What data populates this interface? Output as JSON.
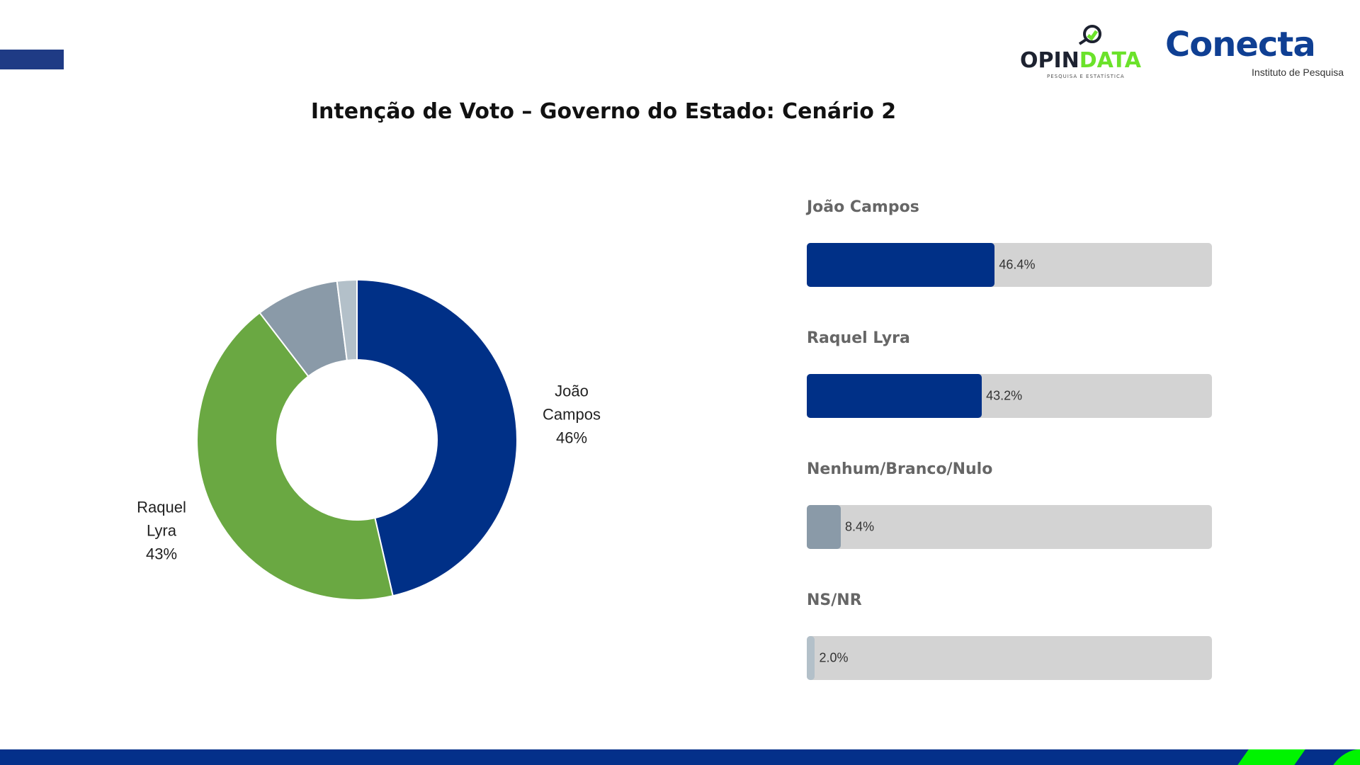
{
  "title": "Intenção de Voto – Governo do Estado: Cenário 2",
  "logos": {
    "opindata_a": "OPIN",
    "opindata_b": "DATA",
    "opindata_sub": "PESQUISA E ESTATÍSTICA",
    "conecta": "Conecta",
    "conecta_sub": "Instituto de Pesquisa"
  },
  "colors": {
    "navy": "#003087",
    "green": "#6aa842",
    "gray": "#8a9aa8",
    "light_gray": "#b3c0c9",
    "track": "#d3d3d3",
    "accent_green": "#00f400"
  },
  "chart_data": [
    {
      "type": "pie",
      "donut": true,
      "slices": [
        {
          "name": "João Campos",
          "value": 46.4,
          "label_lines": [
            "João",
            "Campos",
            "46%"
          ],
          "color": "#003087"
        },
        {
          "name": "Raquel Lyra",
          "value": 43.2,
          "label_lines": [
            "Raquel",
            "Lyra",
            "43%"
          ],
          "color": "#6aa842"
        },
        {
          "name": "Nenhum/Branco/Nulo",
          "value": 8.4,
          "color": "#8a9aa8"
        },
        {
          "name": "NS/NR",
          "value": 2.0,
          "color": "#b3c0c9"
        }
      ]
    },
    {
      "type": "bar",
      "orientation": "horizontal",
      "xlim": [
        0,
        100
      ],
      "bars": [
        {
          "category": "João Campos",
          "value": 46.4,
          "label": "46.4%",
          "color": "#003087"
        },
        {
          "category": "Raquel Lyra",
          "value": 43.2,
          "label": "43.2%",
          "color": "#003087"
        },
        {
          "category": "Nenhum/Branco/Nulo",
          "value": 8.4,
          "label": "8.4%",
          "color": "#8a9aa8"
        },
        {
          "category": "NS/NR",
          "value": 2.0,
          "label": "2.0%",
          "color": "#b3c0c9"
        }
      ]
    }
  ]
}
